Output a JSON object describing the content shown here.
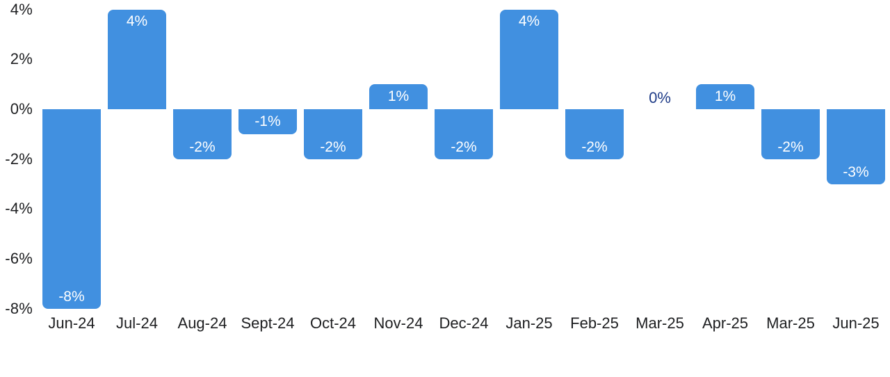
{
  "chart_data": {
    "type": "bar",
    "title": "",
    "xlabel": "",
    "ylabel": "",
    "categories": [
      "Jun-24",
      "Jul-24",
      "Aug-24",
      "Sept-24",
      "Oct-24",
      "Nov-24",
      "Dec-24",
      "Jan-25",
      "Feb-25",
      "Mar-25",
      "Apr-25",
      "Mar-25",
      "Jun-25"
    ],
    "values": [
      -8,
      4,
      -2,
      -1,
      -2,
      1,
      -2,
      4,
      -2,
      0,
      1,
      -2,
      -3
    ],
    "bar_labels": [
      "-8%",
      "4%",
      "-2%",
      "-1%",
      "-2%",
      "1%",
      "-2%",
      "4%",
      "-2%",
      "0%",
      "1%",
      "-2%",
      "-3%"
    ],
    "y_ticks": [
      "4%",
      "2%",
      "0%",
      "-2%",
      "-4%",
      "-6%",
      "-8%"
    ],
    "y_tick_values": [
      4,
      2,
      0,
      -2,
      -4,
      -6,
      -8
    ],
    "ylim": [
      -8,
      4
    ],
    "grid": false,
    "legend": false,
    "colors": {
      "bar_fill": "#4190E0",
      "bar_label_text": "#FFFFFF",
      "zero_label_text": "#1F3C88",
      "axis_text": "#1D1E20",
      "background": "#FFFFFF"
    }
  }
}
